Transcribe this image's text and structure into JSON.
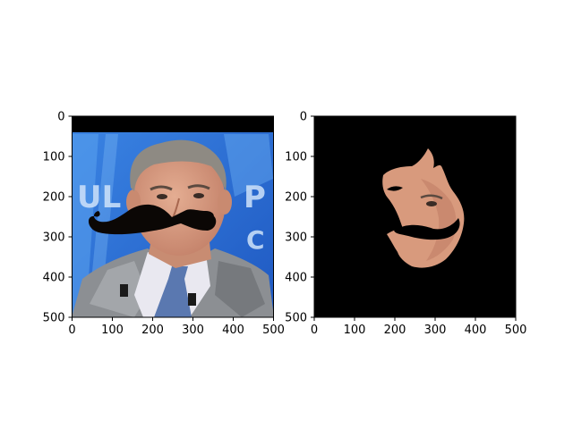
{
  "chart_data": [
    {
      "type": "image",
      "content": "portrait-with-mustache-overlay",
      "xlim": [
        0,
        500
      ],
      "ylim": [
        500,
        0
      ],
      "xticks": [
        0,
        100,
        200,
        300,
        400,
        500
      ],
      "yticks": [
        0,
        100,
        200,
        300,
        400,
        500
      ],
      "xtick_labels": [
        "0",
        "100",
        "200",
        "300",
        "400",
        "500"
      ],
      "ytick_labels": [
        "0",
        "100",
        "200",
        "300",
        "400",
        "500"
      ],
      "title": "",
      "xlabel": "",
      "ylabel": "",
      "grid": false
    },
    {
      "type": "image",
      "content": "masked-face-region",
      "xlim": [
        0,
        500
      ],
      "ylim": [
        500,
        0
      ],
      "xticks": [
        0,
        100,
        200,
        300,
        400,
        500
      ],
      "yticks": [
        0,
        100,
        200,
        300,
        400,
        500
      ],
      "xtick_labels": [
        "0",
        "100",
        "200",
        "300",
        "400",
        "500"
      ],
      "ytick_labels": [
        "0",
        "100",
        "200",
        "300",
        "400",
        "500"
      ],
      "title": "",
      "xlabel": "",
      "ylabel": "",
      "grid": false
    }
  ],
  "colors": {
    "axes_frame": "#000000",
    "studio_blue": "#2a6fd6",
    "suit_gray": "#8c8f93",
    "tie_blue": "#5a78b0",
    "skin": "#d99b7e",
    "hair": "#8e8a83",
    "mustache": "#0b0705",
    "mask_background": "#000000"
  }
}
